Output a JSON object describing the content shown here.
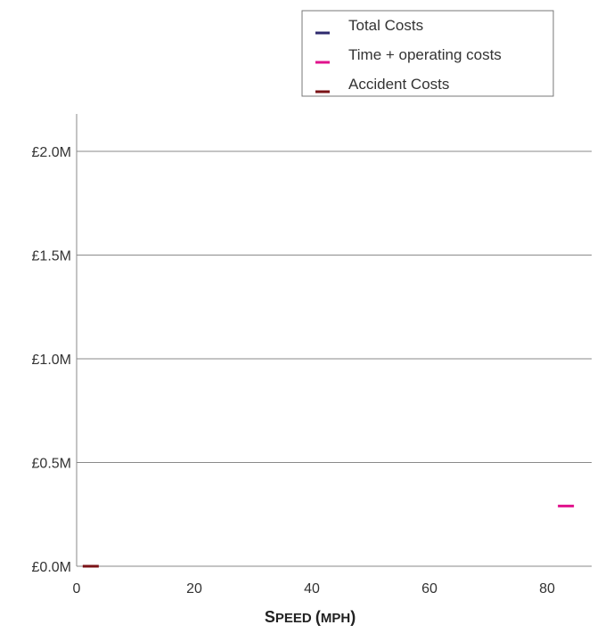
{
  "chart_data": {
    "type": "line",
    "title": "",
    "xlabel": {
      "parts": [
        {
          "text": "S",
          "size": "big"
        },
        {
          "text": "PEED ",
          "size": "small"
        },
        {
          "text": "(",
          "size": "big"
        },
        {
          "text": "MPH",
          "size": "small"
        },
        {
          "text": ")",
          "size": "big"
        }
      ]
    },
    "ylabel": "",
    "xlim": [
      0,
      88
    ],
    "ylim": [
      0,
      2.0
    ],
    "x_ticks": [
      0,
      20,
      40,
      60,
      80
    ],
    "x_tick_labels": [
      "0",
      "20",
      "40",
      "60",
      "80"
    ],
    "y_ticks": [
      0,
      0.5,
      1.0,
      1.5,
      2.0
    ],
    "y_tick_labels": [
      "£0.0M",
      "£0.5M",
      "£1.0M",
      "£1.5M",
      "£2.0M"
    ],
    "grid": "horizontal",
    "legend_position": "top-right",
    "series": [
      {
        "name": "Total Costs",
        "color": "#2e2a6e",
        "points": []
      },
      {
        "name": "Time + operating costs",
        "color": "#e0128c",
        "points": [
          {
            "x": 83.2,
            "y": 0.29
          }
        ]
      },
      {
        "name": "Accident Costs",
        "color": "#7a1216",
        "points": [
          {
            "x": 2.4,
            "y": 0.0
          }
        ]
      }
    ]
  }
}
